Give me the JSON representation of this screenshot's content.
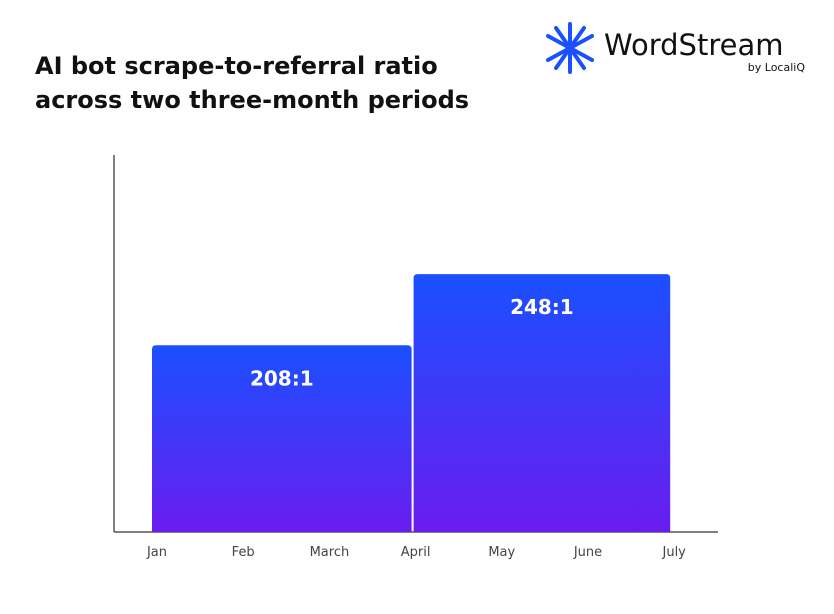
{
  "chart_data": {
    "type": "span-bar",
    "title": [
      "AI bot scrape-to-referral ratio",
      "across two three-month periods"
    ],
    "logo": {
      "name": "WordStream",
      "tagline": "by LocaliQ"
    },
    "xticks": [
      "Jan",
      "Feb",
      "March",
      "April",
      "May",
      "June",
      "July"
    ],
    "bars": [
      {
        "from": "Jan",
        "to": "April",
        "value": 208,
        "value_label": "208:1"
      },
      {
        "from": "April",
        "to": "July",
        "value": 248,
        "value_label": "248:1"
      }
    ],
    "ylim": [
      103,
      315
    ],
    "colors": [
      "#1a50ff",
      "#6a1cf0"
    ]
  }
}
